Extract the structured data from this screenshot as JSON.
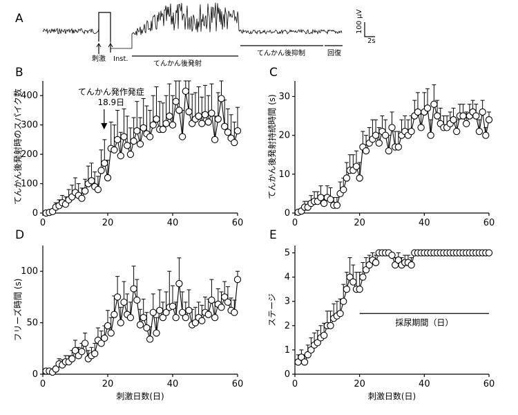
{
  "panel_A": {
    "letter": "A",
    "labels": {
      "stim": "刺激",
      "inst": "Inst.",
      "afterdischarge": "てんかん後発射",
      "suppression": "てんかん後抑制",
      "recovery": "回復"
    },
    "scale_v": "100 μV",
    "scale_t": "2s"
  },
  "chart_data": [
    {
      "panel": "B",
      "type": "line",
      "ylabel": "てんかん後発射時のスパイク数",
      "xlabel": "",
      "xlim": [
        0,
        60
      ],
      "ylim": [
        0,
        450
      ],
      "xticks": [
        0,
        20,
        40,
        60
      ],
      "yticks": [
        0,
        100,
        200,
        300,
        400
      ],
      "annotation": {
        "line1": "てんかん発作発症",
        "line2": "18.9日",
        "x": 18.9
      },
      "x": [
        1,
        2,
        3,
        4,
        5,
        6,
        7,
        8,
        9,
        10,
        11,
        12,
        13,
        14,
        15,
        16,
        17,
        18,
        19,
        20,
        21,
        22,
        23,
        24,
        25,
        26,
        27,
        28,
        29,
        30,
        31,
        32,
        33,
        34,
        35,
        36,
        37,
        38,
        39,
        40,
        41,
        42,
        43,
        44,
        45,
        46,
        47,
        48,
        49,
        50,
        51,
        52,
        53,
        54,
        55,
        56,
        57,
        58,
        59,
        60
      ],
      "y": [
        0,
        2,
        5,
        20,
        25,
        35,
        30,
        45,
        55,
        70,
        60,
        50,
        75,
        100,
        110,
        90,
        80,
        145,
        170,
        120,
        220,
        215,
        250,
        195,
        260,
        230,
        200,
        245,
        280,
        235,
        290,
        270,
        260,
        300,
        320,
        285,
        285,
        305,
        330,
        300,
        380,
        350,
        260,
        415,
        345,
        305,
        320,
        330,
        305,
        335,
        310,
        340,
        250,
        320,
        390,
        295,
        275,
        255,
        240,
        280
      ],
      "err": [
        3,
        4,
        8,
        15,
        20,
        25,
        25,
        35,
        40,
        50,
        40,
        35,
        40,
        60,
        60,
        50,
        45,
        70,
        80,
        60,
        90,
        85,
        100,
        80,
        95,
        100,
        90,
        80,
        100,
        90,
        100,
        95,
        90,
        100,
        110,
        95,
        90,
        95,
        110,
        100,
        120,
        100,
        90,
        130,
        110,
        100,
        90,
        100,
        90,
        100,
        90,
        100,
        80,
        90,
        110,
        90,
        80,
        80,
        70,
        80
      ]
    },
    {
      "panel": "C",
      "type": "line",
      "ylabel": "てんかん後発射持続時間 (s)",
      "xlabel": "",
      "xlim": [
        0,
        60
      ],
      "ylim": [
        0,
        34
      ],
      "xticks": [
        0,
        20,
        40,
        60
      ],
      "yticks": [
        0,
        10,
        20,
        30
      ],
      "x": [
        1,
        2,
        3,
        4,
        5,
        6,
        7,
        8,
        9,
        10,
        11,
        12,
        13,
        14,
        15,
        16,
        17,
        18,
        19,
        20,
        21,
        22,
        23,
        24,
        25,
        26,
        27,
        28,
        29,
        30,
        31,
        32,
        33,
        34,
        35,
        36,
        37,
        38,
        39,
        40,
        41,
        42,
        43,
        44,
        45,
        46,
        47,
        48,
        49,
        50,
        51,
        52,
        53,
        54,
        55,
        56,
        57,
        58,
        59,
        60
      ],
      "y": [
        0.2,
        0.5,
        1.5,
        1.5,
        2.5,
        3,
        3,
        4,
        2.5,
        4,
        3.5,
        2,
        2,
        5,
        6,
        9,
        11,
        11,
        12,
        9,
        17,
        16,
        18,
        19,
        20,
        18,
        21,
        20,
        16,
        22,
        17,
        17,
        20,
        21,
        20,
        21,
        25,
        26,
        22,
        26,
        27,
        20,
        28,
        25,
        23,
        22,
        22,
        23,
        24,
        21,
        25,
        25,
        23,
        25,
        26,
        25,
        21,
        26,
        20,
        24
      ],
      "err": [
        0.3,
        0.5,
        1.5,
        1.5,
        2,
        2.5,
        2.5,
        3,
        2,
        3,
        3,
        2,
        2,
        3,
        3,
        4,
        4,
        4,
        4,
        4,
        4,
        4,
        4,
        5,
        4,
        4,
        4,
        4,
        4,
        4,
        4,
        4,
        4,
        4,
        4,
        4,
        4,
        5,
        4,
        5,
        5,
        4,
        5,
        4,
        4,
        3,
        3,
        3,
        3,
        3,
        3,
        3,
        3,
        3,
        3,
        3,
        3,
        3,
        2,
        2
      ]
    },
    {
      "panel": "D",
      "type": "line",
      "ylabel": "フリーズ時間 (s)",
      "xlabel": "刺激日数(日)",
      "xlim": [
        0,
        60
      ],
      "ylim": [
        0,
        125
      ],
      "xticks": [
        0,
        20,
        40,
        60
      ],
      "yticks": [
        0,
        50,
        100
      ],
      "x": [
        1,
        2,
        3,
        4,
        5,
        6,
        7,
        8,
        9,
        10,
        11,
        12,
        13,
        14,
        15,
        16,
        17,
        18,
        19,
        20,
        21,
        22,
        23,
        24,
        25,
        26,
        27,
        28,
        29,
        30,
        31,
        32,
        33,
        34,
        35,
        36,
        37,
        38,
        39,
        40,
        41,
        42,
        43,
        44,
        45,
        46,
        47,
        48,
        49,
        50,
        51,
        52,
        53,
        54,
        55,
        56,
        57,
        58,
        59,
        60
      ],
      "y": [
        3,
        3,
        2,
        5,
        10,
        9,
        12,
        12,
        15,
        23,
        18,
        22,
        30,
        15,
        18,
        20,
        33,
        30,
        35,
        47,
        40,
        58,
        75,
        50,
        70,
        58,
        55,
        83,
        72,
        48,
        55,
        45,
        34,
        60,
        40,
        62,
        55,
        60,
        65,
        66,
        55,
        88,
        60,
        55,
        62,
        48,
        50,
        55,
        52,
        60,
        58,
        72,
        55,
        68,
        65,
        75,
        70,
        62,
        60,
        92
      ],
      "err": [
        2,
        2,
        2,
        3,
        5,
        5,
        6,
        6,
        8,
        10,
        8,
        8,
        10,
        8,
        8,
        10,
        12,
        12,
        12,
        15,
        15,
        18,
        20,
        15,
        20,
        20,
        15,
        22,
        20,
        15,
        18,
        15,
        12,
        18,
        15,
        20,
        15,
        20,
        35,
        20,
        15,
        25,
        20,
        15,
        20,
        15,
        15,
        15,
        15,
        15,
        15,
        20,
        15,
        15,
        15,
        15,
        15,
        12,
        12,
        8
      ]
    },
    {
      "panel": "E",
      "type": "line",
      "ylabel": "ステージ",
      "xlabel": "刺激日数(日)",
      "xlim": [
        0,
        60
      ],
      "ylim": [
        0,
        5.3
      ],
      "xticks": [
        0,
        20,
        40,
        60
      ],
      "yticks": [
        0,
        1,
        2,
        3,
        4,
        5
      ],
      "annotation": {
        "text": "採尿期間（日）",
        "x_start": 20,
        "x_end": 60,
        "y": 2.5
      },
      "x": [
        1,
        2,
        3,
        4,
        5,
        6,
        7,
        8,
        9,
        10,
        11,
        12,
        13,
        14,
        15,
        16,
        17,
        18,
        19,
        20,
        21,
        22,
        23,
        24,
        25,
        26,
        27,
        28,
        29,
        30,
        31,
        32,
        33,
        34,
        35,
        36,
        37,
        38,
        39,
        40,
        41,
        42,
        43,
        44,
        45,
        46,
        47,
        48,
        49,
        50,
        51,
        52,
        53,
        54,
        55,
        56,
        57,
        58,
        59,
        60
      ],
      "y": [
        0.5,
        0.7,
        0.5,
        0.8,
        1.0,
        1.2,
        1.3,
        1.5,
        1.6,
        2.0,
        2.0,
        2.3,
        2.4,
        2.5,
        3.0,
        3.5,
        4.0,
        3.8,
        3.5,
        3.5,
        4.0,
        4.3,
        4.5,
        4.7,
        4.6,
        5.0,
        5.0,
        5.0,
        5.0,
        4.9,
        4.5,
        4.7,
        4.5,
        4.6,
        4.6,
        4.5,
        5.0,
        5.0,
        5.0,
        5.0,
        5.0,
        5.0,
        5.0,
        5.0,
        5.0,
        5.0,
        5.0,
        5.0,
        5.0,
        5.0,
        5.0,
        5.0,
        5.0,
        5.0,
        5.0,
        5.0,
        5.0,
        5.0,
        5.0,
        5.0
      ],
      "err": [
        0.3,
        0.3,
        0.3,
        0.4,
        0.5,
        0.5,
        0.5,
        0.5,
        0.5,
        0.6,
        0.6,
        0.6,
        0.6,
        0.6,
        0.7,
        0.7,
        0.8,
        0.7,
        0.7,
        0.7,
        0.6,
        0.5,
        0.4,
        0.3,
        0.3,
        0.1,
        0.1,
        0.1,
        0.1,
        0.1,
        0.3,
        0.3,
        0.3,
        0.3,
        0.3,
        0.3,
        0.1,
        0,
        0,
        0,
        0,
        0,
        0,
        0,
        0,
        0,
        0,
        0,
        0,
        0,
        0,
        0,
        0,
        0,
        0,
        0,
        0,
        0,
        0,
        0
      ]
    }
  ]
}
